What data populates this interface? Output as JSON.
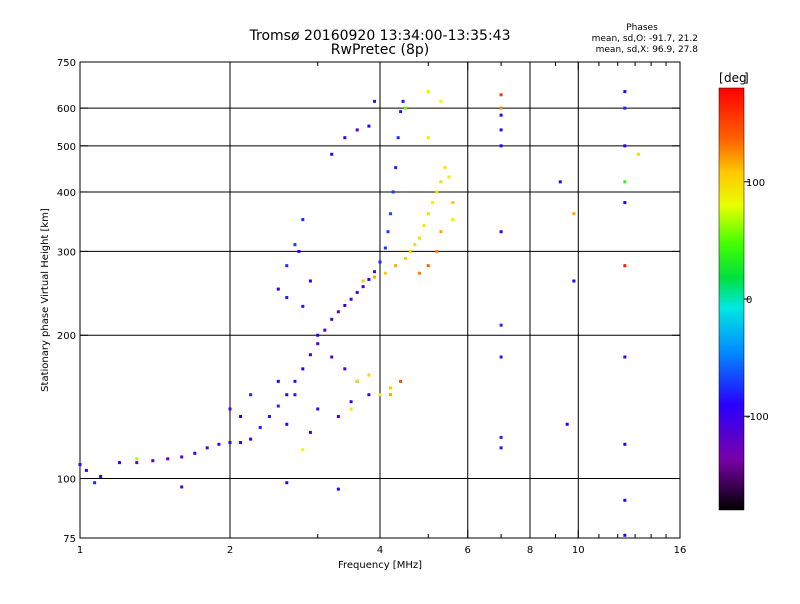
{
  "header": {
    "title_line1": "Tromsø 20160920 13:34:00-13:35:43",
    "title_line2": "RwPretec (8p)",
    "phases_heading": "Phases",
    "phases_O": "mean, sd,O: -91.7, 21.2",
    "phases_X": "mean, sd,X:  96.9, 27.8"
  },
  "colorbar": {
    "label": "deg",
    "ticks": [
      "100",
      "0",
      "-100"
    ],
    "tick_values": [
      100,
      0,
      -100
    ],
    "range": [
      -180,
      180
    ]
  },
  "chart_data": {
    "type": "scatter",
    "title": "Tromsø 20160920 13:34:00-13:35:43",
    "subtitle": "RwPretec (8p)",
    "xlabel": "Frequency [MHz]",
    "ylabel": "Stationary phase Virtual Height [km]",
    "x_scale": "log",
    "y_scale": "log",
    "xlim": [
      1,
      16
    ],
    "ylim": [
      75,
      750
    ],
    "x_ticks": [
      1,
      2,
      4,
      6,
      8,
      10,
      16
    ],
    "x_tick_labels": [
      "1",
      "2",
      "4",
      "6",
      "8",
      "10",
      "16"
    ],
    "x_minor_ticks": [
      3,
      5,
      7,
      9,
      11,
      12,
      13,
      14,
      15
    ],
    "y_ticks": [
      75,
      100,
      200,
      300,
      400,
      500,
      600,
      750
    ],
    "y_tick_labels": [
      "75",
      "100",
      "200",
      "300",
      "400",
      "500",
      "600",
      "750"
    ],
    "y_gridlines": [
      100,
      200,
      300,
      400,
      500,
      600
    ],
    "x_gridlines": [
      2,
      4,
      6,
      8,
      10
    ],
    "grid": true,
    "series": [
      {
        "name": "O",
        "points": [
          [
            1.0,
            107,
            -110
          ],
          [
            1.03,
            104,
            -100
          ],
          [
            1.07,
            98,
            -90
          ],
          [
            1.1,
            101,
            -100
          ],
          [
            1.2,
            108,
            -110
          ],
          [
            1.3,
            108,
            -130
          ],
          [
            1.4,
            109,
            -120
          ],
          [
            1.5,
            110,
            -130
          ],
          [
            1.6,
            111,
            -120
          ],
          [
            1.7,
            113,
            -110
          ],
          [
            1.8,
            116,
            -120
          ],
          [
            1.9,
            118,
            -110
          ],
          [
            2.0,
            119,
            -100
          ],
          [
            2.1,
            119,
            -110
          ],
          [
            2.2,
            121,
            -100
          ],
          [
            2.3,
            128,
            -90
          ],
          [
            2.4,
            135,
            -95
          ],
          [
            2.5,
            142,
            -90
          ],
          [
            2.6,
            150,
            -100
          ],
          [
            2.7,
            160,
            -95
          ],
          [
            2.8,
            170,
            -100
          ],
          [
            2.9,
            182,
            -110
          ],
          [
            3.0,
            192,
            -115
          ],
          [
            3.1,
            205,
            -120
          ],
          [
            3.2,
            216,
            -115
          ],
          [
            3.3,
            224,
            -120
          ],
          [
            3.4,
            231,
            -110
          ],
          [
            3.5,
            238,
            -115
          ],
          [
            3.6,
            246,
            -110
          ],
          [
            3.7,
            253,
            -105
          ],
          [
            3.8,
            262,
            -100
          ],
          [
            3.9,
            272,
            -95
          ],
          [
            4.0,
            285,
            -90
          ],
          [
            4.1,
            305,
            -85
          ],
          [
            4.15,
            330,
            -85
          ],
          [
            4.2,
            360,
            -80
          ],
          [
            4.25,
            400,
            -85
          ],
          [
            4.3,
            450,
            -90
          ],
          [
            4.35,
            520,
            -90
          ],
          [
            4.4,
            590,
            -95
          ],
          [
            4.45,
            620,
            -95
          ],
          [
            2.6,
            280,
            -90
          ],
          [
            2.7,
            310,
            -85
          ],
          [
            2.8,
            350,
            -90
          ],
          [
            2.75,
            300,
            -100
          ],
          [
            2.9,
            260,
            -105
          ],
          [
            2.5,
            250,
            -100
          ],
          [
            2.6,
            240,
            -95
          ],
          [
            2.8,
            230,
            -95
          ],
          [
            3.0,
            200,
            -100
          ],
          [
            3.2,
            180,
            -120
          ],
          [
            3.4,
            170,
            -115
          ],
          [
            3.6,
            160,
            -120
          ],
          [
            3.8,
            150,
            -110
          ],
          [
            3.0,
            140,
            -105
          ],
          [
            2.7,
            150,
            -95
          ],
          [
            2.5,
            160,
            -100
          ],
          [
            2.6,
            130,
            -100
          ],
          [
            2.9,
            125,
            -110
          ],
          [
            3.3,
            135,
            -110
          ],
          [
            3.5,
            145,
            -105
          ],
          [
            2.1,
            135,
            -100
          ],
          [
            2.0,
            140,
            -110
          ],
          [
            2.2,
            150,
            -90
          ],
          [
            3.2,
            480,
            -100
          ],
          [
            3.4,
            520,
            -110
          ],
          [
            3.6,
            540,
            -120
          ],
          [
            3.8,
            550,
            -100
          ],
          [
            3.9,
            620,
            -95
          ],
          [
            7.0,
            500,
            -100
          ],
          [
            7.0,
            540,
            -100
          ],
          [
            7.0,
            580,
            -110
          ],
          [
            7.0,
            330,
            -100
          ],
          [
            7.0,
            210,
            -90
          ],
          [
            7.0,
            180,
            -95
          ],
          [
            7.0,
            122,
            -90
          ],
          [
            7.0,
            116,
            -95
          ],
          [
            12.4,
            650,
            -100
          ],
          [
            12.4,
            600,
            -90
          ],
          [
            12.4,
            500,
            -100
          ],
          [
            12.4,
            380,
            -100
          ],
          [
            12.4,
            180,
            -110
          ],
          [
            12.4,
            118,
            -100
          ],
          [
            12.4,
            90,
            -100
          ],
          [
            12.4,
            76,
            -100
          ],
          [
            9.2,
            420,
            -100
          ],
          [
            9.5,
            130,
            -100
          ],
          [
            9.8,
            260,
            -100
          ],
          [
            2.6,
            98,
            -110
          ],
          [
            3.3,
            95,
            -100
          ],
          [
            1.6,
            96,
            -110
          ]
        ]
      },
      {
        "name": "X",
        "points": [
          [
            3.7,
            260,
            110
          ],
          [
            3.9,
            265,
            120
          ],
          [
            4.1,
            270,
            110
          ],
          [
            4.3,
            280,
            120
          ],
          [
            4.5,
            290,
            105
          ],
          [
            4.6,
            300,
            110
          ],
          [
            4.8,
            320,
            100
          ],
          [
            4.9,
            340,
            95
          ],
          [
            5.0,
            360,
            100
          ],
          [
            5.1,
            380,
            90
          ],
          [
            5.2,
            400,
            95
          ],
          [
            5.3,
            420,
            100
          ],
          [
            5.5,
            430,
            90
          ],
          [
            5.4,
            450,
            95
          ],
          [
            5.6,
            380,
            110
          ],
          [
            5.2,
            300,
            130
          ],
          [
            5.0,
            280,
            140
          ],
          [
            4.8,
            270,
            130
          ],
          [
            3.6,
            160,
            95
          ],
          [
            3.8,
            165,
            100
          ],
          [
            4.0,
            150,
            90
          ],
          [
            4.2,
            155,
            110
          ],
          [
            5.0,
            520,
            90
          ],
          [
            5.3,
            620,
            80
          ],
          [
            5.0,
            650,
            70
          ],
          [
            7.0,
            640,
            160
          ],
          [
            7.0,
            600,
            130
          ],
          [
            12.4,
            280,
            170
          ],
          [
            12.4,
            420,
            20
          ],
          [
            13.2,
            480,
            100
          ],
          [
            1.3,
            110,
            60
          ],
          [
            2.8,
            115,
            80
          ],
          [
            9.8,
            360,
            120
          ],
          [
            4.2,
            150,
            120
          ],
          [
            4.4,
            160,
            150
          ],
          [
            3.5,
            140,
            90
          ],
          [
            5.6,
            350,
            90
          ],
          [
            5.3,
            330,
            120
          ],
          [
            4.7,
            310,
            100
          ],
          [
            4.5,
            600,
            40
          ]
        ]
      }
    ]
  }
}
